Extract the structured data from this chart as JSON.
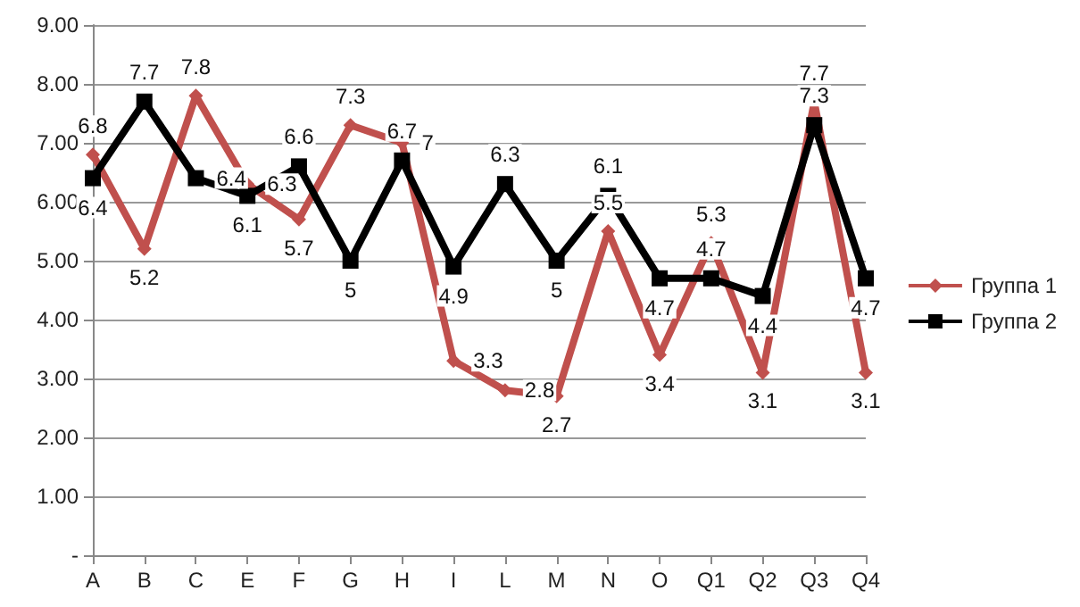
{
  "chart_data": {
    "type": "line",
    "categories": [
      "A",
      "B",
      "C",
      "E",
      "F",
      "G",
      "H",
      "I",
      "L",
      "M",
      "N",
      "O",
      "Q1",
      "Q2",
      "Q3",
      "Q4"
    ],
    "series": [
      {
        "name": "Группа 1",
        "color": "#c0504d",
        "marker": "diamond",
        "values": [
          6.8,
          5.2,
          7.8,
          6.3,
          5.7,
          7.3,
          7,
          3.3,
          2.8,
          2.7,
          5.5,
          3.4,
          5.3,
          3.1,
          7.7,
          3.1
        ]
      },
      {
        "name": "Группа 2",
        "color": "#000000",
        "marker": "square",
        "values": [
          6.4,
          7.7,
          6.4,
          6.1,
          6.6,
          5,
          6.7,
          4.9,
          6.3,
          5,
          6.1,
          4.7,
          4.7,
          4.4,
          7.3,
          4.7
        ]
      }
    ],
    "ylim": [
      0,
      9
    ],
    "yticks": [
      {
        "value": 0,
        "label": "-"
      },
      {
        "value": 1,
        "label": "1.00"
      },
      {
        "value": 2,
        "label": "2.00"
      },
      {
        "value": 3,
        "label": "3.00"
      },
      {
        "value": 4,
        "label": "4.00"
      },
      {
        "value": 5,
        "label": "5.00"
      },
      {
        "value": 6,
        "label": "6.00"
      },
      {
        "value": 7,
        "label": "7.00"
      },
      {
        "value": 8,
        "label": "8.00"
      },
      {
        "value": 9,
        "label": "9.00"
      }
    ],
    "grid": "y",
    "legend": "right",
    "data_labels": true,
    "line_style": "solid"
  }
}
